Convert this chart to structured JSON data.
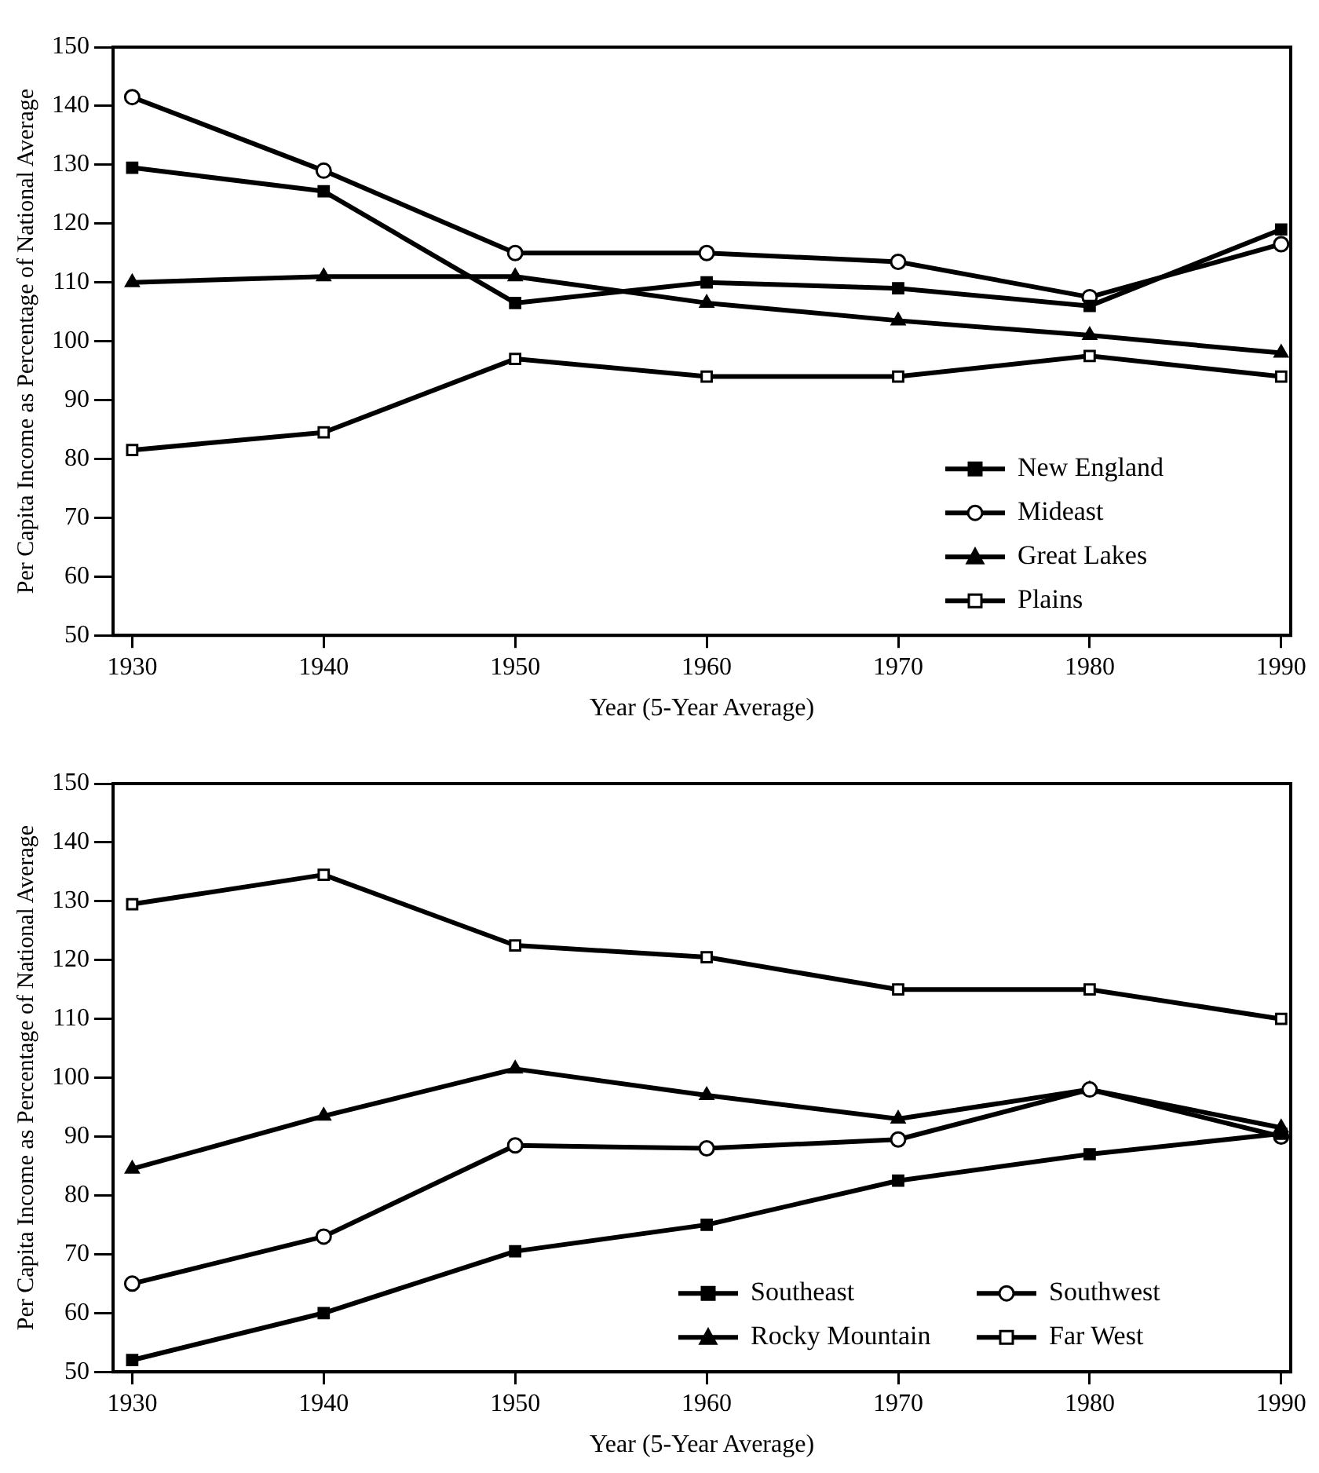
{
  "chart_data": [
    {
      "type": "line",
      "xlabel": "Year (5-Year Average)",
      "ylabel": "Per Capita Income as Percentage of National Average",
      "x": [
        1930,
        1940,
        1950,
        1960,
        1970,
        1980,
        1990
      ],
      "xlim": [
        1929,
        1990.5
      ],
      "xticks": [
        1930,
        1940,
        1950,
        1960,
        1970,
        1980,
        1990
      ],
      "ylim": [
        50,
        150
      ],
      "yticks": [
        50,
        60,
        70,
        80,
        90,
        100,
        110,
        120,
        130,
        140,
        150
      ],
      "grid": false,
      "legend": "bottom right",
      "series": [
        {
          "name": "New England",
          "color": "#000000",
          "marker": "square",
          "values": [
            129.5,
            125.5,
            106.5,
            110,
            109,
            106,
            119
          ]
        },
        {
          "name": "Mideast",
          "color": "#000000",
          "marker": "circle",
          "values": [
            141.5,
            129,
            115,
            115,
            113.5,
            107.5,
            116.5
          ]
        },
        {
          "name": "Great Lakes",
          "color": "#000000",
          "marker": "triangle",
          "values": [
            110,
            111,
            111,
            106.5,
            103.5,
            101,
            98
          ]
        },
        {
          "name": "Plains",
          "color": "#000000",
          "marker": "square",
          "values": [
            81.5,
            84.5,
            97,
            94,
            94,
            97.5,
            94
          ]
        }
      ]
    },
    {
      "type": "line",
      "xlabel": "Year (5-Year Average)",
      "ylabel": "Per Capita Income as Percentage of National Average",
      "x": [
        1930,
        1940,
        1950,
        1960,
        1970,
        1980,
        1990
      ],
      "xlim": [
        1929,
        1990.5
      ],
      "xticks": [
        1930,
        1940,
        1950,
        1960,
        1970,
        1980,
        1990
      ],
      "ylim": [
        50,
        150
      ],
      "yticks": [
        50,
        60,
        70,
        80,
        90,
        100,
        110,
        120,
        130,
        140,
        150
      ],
      "grid": false,
      "legend": "bottom right",
      "series": [
        {
          "name": "Southeast",
          "color": "#000000",
          "marker": "square",
          "values": [
            52,
            60,
            70.5,
            75,
            82.5,
            87,
            90.5
          ]
        },
        {
          "name": "Southwest",
          "color": "#000000",
          "marker": "circle",
          "values": [
            65,
            73,
            88.5,
            88,
            89.5,
            98,
            90
          ]
        },
        {
          "name": "Rocky Mountain",
          "color": "#000000",
          "marker": "triangle",
          "values": [
            84.5,
            93.5,
            101.5,
            97,
            93,
            98,
            91.5
          ]
        },
        {
          "name": "Far West",
          "color": "#000000",
          "marker": "square",
          "values": [
            129.5,
            134.5,
            122.5,
            120.5,
            115,
            115,
            110
          ]
        }
      ]
    }
  ]
}
